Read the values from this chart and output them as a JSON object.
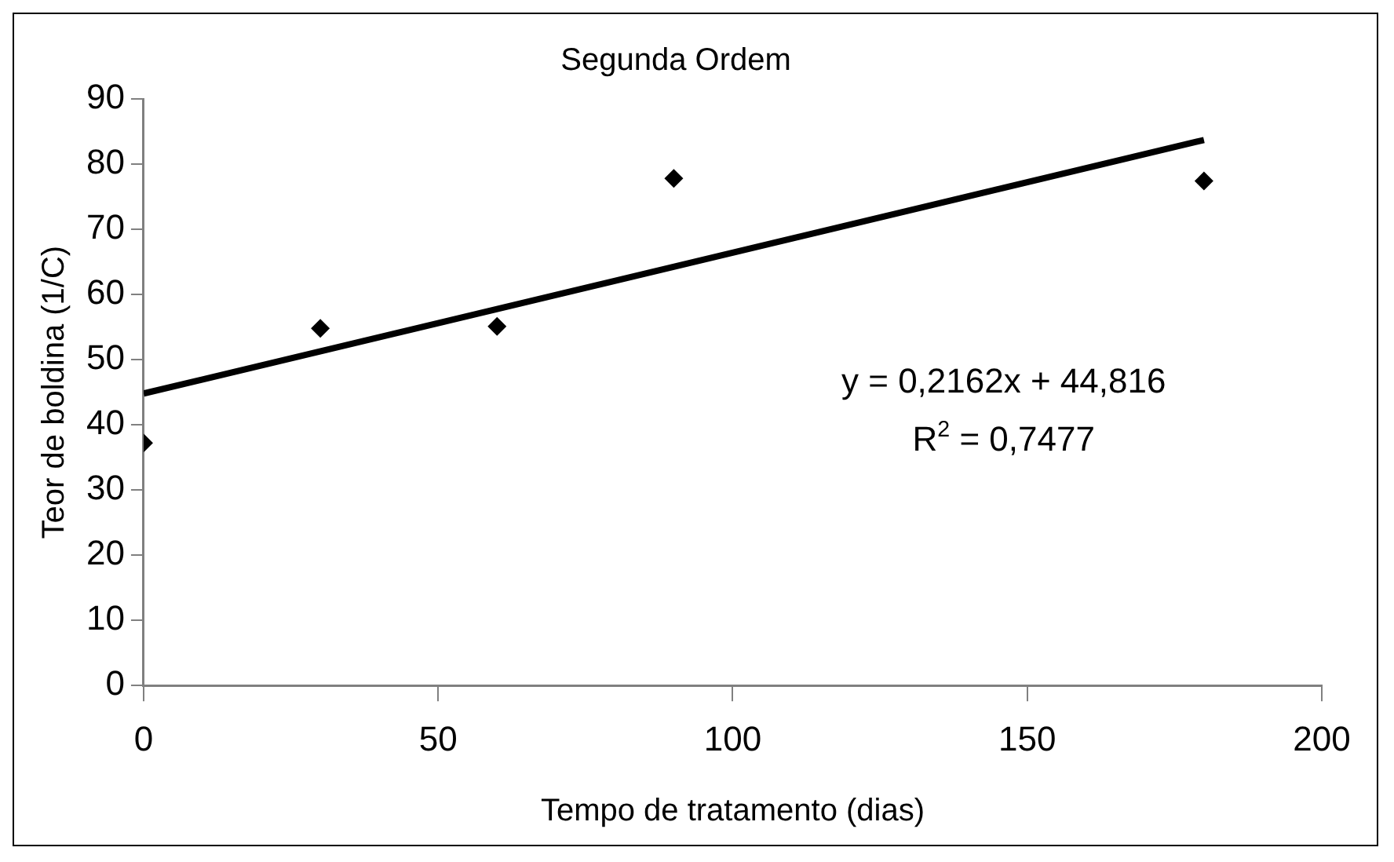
{
  "chart_data": {
    "type": "scatter",
    "title": "Segunda Ordem",
    "xlabel": "Tempo de tratamento (dias)",
    "ylabel": "Teor de boldina (1/C)",
    "x": [
      0,
      30,
      60,
      90,
      180
    ],
    "series": [
      {
        "color": "#000000",
        "marker": "diamond",
        "values": [
          37.2,
          54.8,
          55.1,
          77.8,
          77.4
        ]
      },
      {
        "type": "line",
        "color": "#000000",
        "marker": "none",
        "line_style": "solid",
        "x": [
          0,
          180
        ],
        "values": [
          44.8,
          83.7
        ]
      }
    ],
    "xlim": [
      0,
      200
    ],
    "xticks": [
      0,
      50,
      100,
      150,
      200
    ],
    "ylim": [
      0,
      90
    ],
    "yticks": [
      0,
      10,
      20,
      30,
      40,
      50,
      60,
      70,
      80,
      90
    ],
    "grid": false,
    "legend": false,
    "annotations": [
      "y = 0,2162x + 44,816",
      "R$^{2}$ = 0,7477"
    ]
  }
}
